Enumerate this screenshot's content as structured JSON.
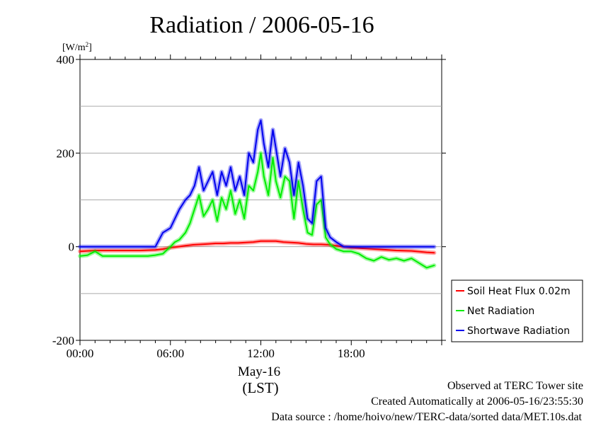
{
  "chart_data": {
    "type": "line",
    "title": "Radiation / 2006-05-16",
    "ylabel_unit": "[W/m",
    "ylabel_sup": "2",
    "ylabel_close": "]",
    "ylim": [
      -200,
      400
    ],
    "xlim": [
      0,
      24
    ],
    "y_ticks": [
      {
        "value": -200,
        "label": "-200"
      },
      {
        "value": 0,
        "label": "0"
      },
      {
        "value": 200,
        "label": "200"
      },
      {
        "value": 400,
        "label": "400"
      }
    ],
    "y_gridlines": [
      -100,
      0,
      100,
      200,
      300
    ],
    "x_ticks": [
      {
        "value": 0,
        "label": "00:00"
      },
      {
        "value": 6,
        "label": "06:00"
      },
      {
        "value": 12,
        "label": "12:00"
      },
      {
        "value": 18,
        "label": "18:00"
      }
    ],
    "x_date_label": "May-16",
    "x_axis_label": "(LST)",
    "grid": "horizontal",
    "legend_position": "right",
    "series": [
      {
        "name": "Soil Heat Flux 0.02m",
        "color": "#ff0000",
        "x": [
          0,
          1,
          2,
          3,
          4,
          5,
          5.5,
          6,
          6.5,
          7,
          7.5,
          8,
          8.5,
          9,
          9.5,
          10,
          10.5,
          11,
          11.5,
          12,
          12.5,
          13,
          13.5,
          14,
          14.5,
          15,
          15.5,
          16,
          16.5,
          17,
          17.5,
          18,
          19,
          20,
          21,
          22,
          23,
          23.5
        ],
        "y": [
          -10,
          -8,
          -8,
          -8,
          -8,
          -7,
          -5,
          -2,
          0,
          2,
          4,
          5,
          6,
          7,
          7,
          8,
          8,
          9,
          10,
          12,
          12,
          12,
          10,
          9,
          8,
          6,
          5,
          5,
          4,
          2,
          0,
          -2,
          -4,
          -6,
          -8,
          -9,
          -12,
          -13
        ]
      },
      {
        "name": "Net Radiation",
        "color": "#00ee00",
        "x": [
          0,
          0.5,
          1,
          1.5,
          2,
          3,
          4,
          4.5,
          5,
          5.5,
          6,
          6.3,
          6.6,
          7,
          7.3,
          7.6,
          7.9,
          8.2,
          8.5,
          8.8,
          9.1,
          9.4,
          9.7,
          10,
          10.3,
          10.6,
          10.9,
          11.2,
          11.5,
          11.8,
          12,
          12.2,
          12.5,
          12.8,
          13,
          13.3,
          13.6,
          13.9,
          14.2,
          14.5,
          14.8,
          15.1,
          15.4,
          15.7,
          16,
          16.3,
          16.6,
          17,
          17.5,
          18,
          18.5,
          19,
          19.5,
          20,
          20.5,
          21,
          21.5,
          22,
          22.5,
          23,
          23.5
        ],
        "y": [
          -20,
          -18,
          -10,
          -20,
          -20,
          -20,
          -20,
          -20,
          -18,
          -15,
          0,
          10,
          15,
          30,
          50,
          80,
          110,
          65,
          80,
          100,
          55,
          105,
          80,
          120,
          70,
          100,
          60,
          130,
          120,
          160,
          200,
          150,
          110,
          190,
          140,
          105,
          150,
          140,
          60,
          140,
          80,
          30,
          25,
          90,
          100,
          20,
          5,
          -5,
          -10,
          -10,
          -15,
          -25,
          -30,
          -22,
          -28,
          -25,
          -30,
          -25,
          -35,
          -45,
          -40
        ]
      },
      {
        "name": "Shortwave Radiation",
        "color": "#0000ee",
        "x": [
          0,
          1,
          2,
          3,
          4,
          4.5,
          5,
          5.5,
          6,
          6.3,
          6.6,
          7,
          7.3,
          7.6,
          7.9,
          8.2,
          8.5,
          8.8,
          9.1,
          9.4,
          9.7,
          10,
          10.3,
          10.6,
          10.9,
          11.2,
          11.5,
          11.8,
          12,
          12.2,
          12.5,
          12.8,
          13,
          13.3,
          13.6,
          13.9,
          14.2,
          14.5,
          14.8,
          15.1,
          15.4,
          15.7,
          16,
          16.3,
          16.6,
          17,
          17.5,
          18,
          19,
          20,
          21,
          22,
          23,
          23.5
        ],
        "y": [
          0,
          0,
          0,
          0,
          0,
          0,
          0,
          30,
          40,
          60,
          80,
          100,
          110,
          130,
          170,
          120,
          140,
          160,
          110,
          160,
          130,
          170,
          120,
          150,
          110,
          200,
          180,
          250,
          270,
          220,
          170,
          250,
          210,
          150,
          210,
          180,
          110,
          180,
          130,
          60,
          50,
          140,
          150,
          40,
          20,
          10,
          0,
          0,
          0,
          0,
          0,
          0,
          0,
          0
        ]
      }
    ]
  },
  "footer": {
    "line1": "Observed at TERC Tower site",
    "line2": "Created Automatically at 2006-05-16/23:55:30",
    "line3": "Data source : /home/hoivo/new/TERC-data/sorted  data/MET.10s.dat"
  }
}
